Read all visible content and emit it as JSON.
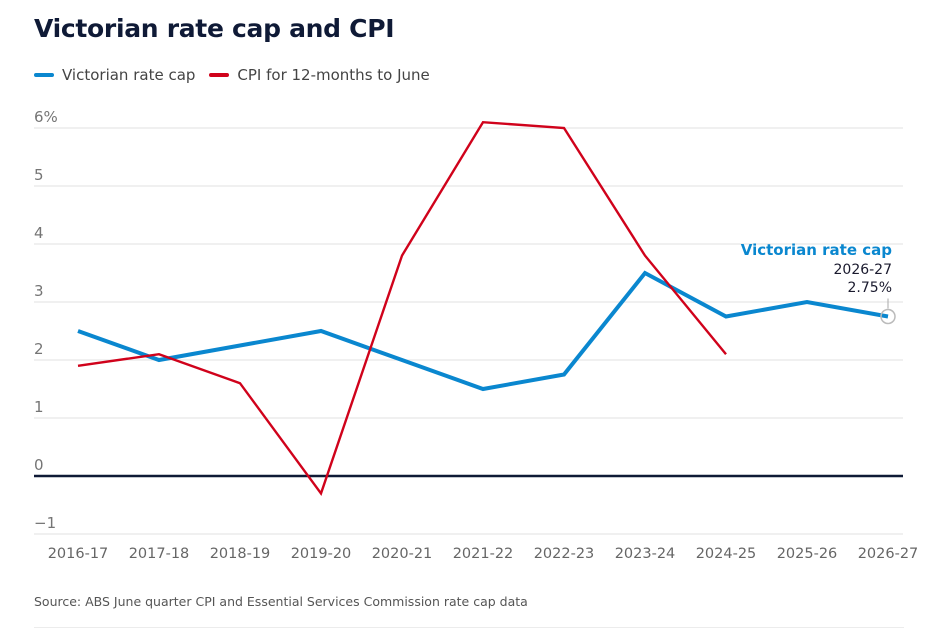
{
  "chart_data": {
    "type": "line",
    "title": "Victorian rate cap and CPI",
    "xlabel": "",
    "ylabel": "",
    "x": [
      "2016-17",
      "2017-18",
      "2018-19",
      "2019-20",
      "2020-21",
      "2021-22",
      "2022-23",
      "2023-24",
      "2024-25",
      "2025-26",
      "2026-27"
    ],
    "y_ticks": [
      {
        "value": 6,
        "label": "6%"
      },
      {
        "value": 5,
        "label": "5"
      },
      {
        "value": 4,
        "label": "4"
      },
      {
        "value": 3,
        "label": "3"
      },
      {
        "value": 2,
        "label": "2"
      },
      {
        "value": 1,
        "label": "1"
      },
      {
        "value": 0,
        "label": "0"
      },
      {
        "value": -1,
        "label": "−1"
      }
    ],
    "ylim": [
      -1,
      6
    ],
    "grid": true,
    "legend_position": "top-left",
    "series": [
      {
        "name": "Victorian rate cap",
        "color": "#0a87cf",
        "values": [
          2.5,
          2.0,
          2.25,
          2.5,
          2.0,
          1.5,
          1.75,
          3.5,
          2.75,
          3.0,
          2.75
        ]
      },
      {
        "name": "CPI for 12-months to June",
        "color": "#d0021b",
        "values": [
          1.9,
          2.1,
          1.6,
          -0.3,
          3.8,
          6.1,
          6.0,
          3.8,
          2.1,
          null,
          null
        ]
      }
    ],
    "annotation": {
      "series": "Victorian rate cap",
      "title": "Victorian rate cap",
      "period": "2026-27",
      "value_label": "2.75%"
    }
  },
  "legend": [
    {
      "label": "Victorian rate cap",
      "color": "#0a87cf"
    },
    {
      "label": "CPI for 12-months to June",
      "color": "#d0021b"
    }
  ],
  "source": "Source: ABS June quarter CPI and Essential Services Commission rate cap data"
}
